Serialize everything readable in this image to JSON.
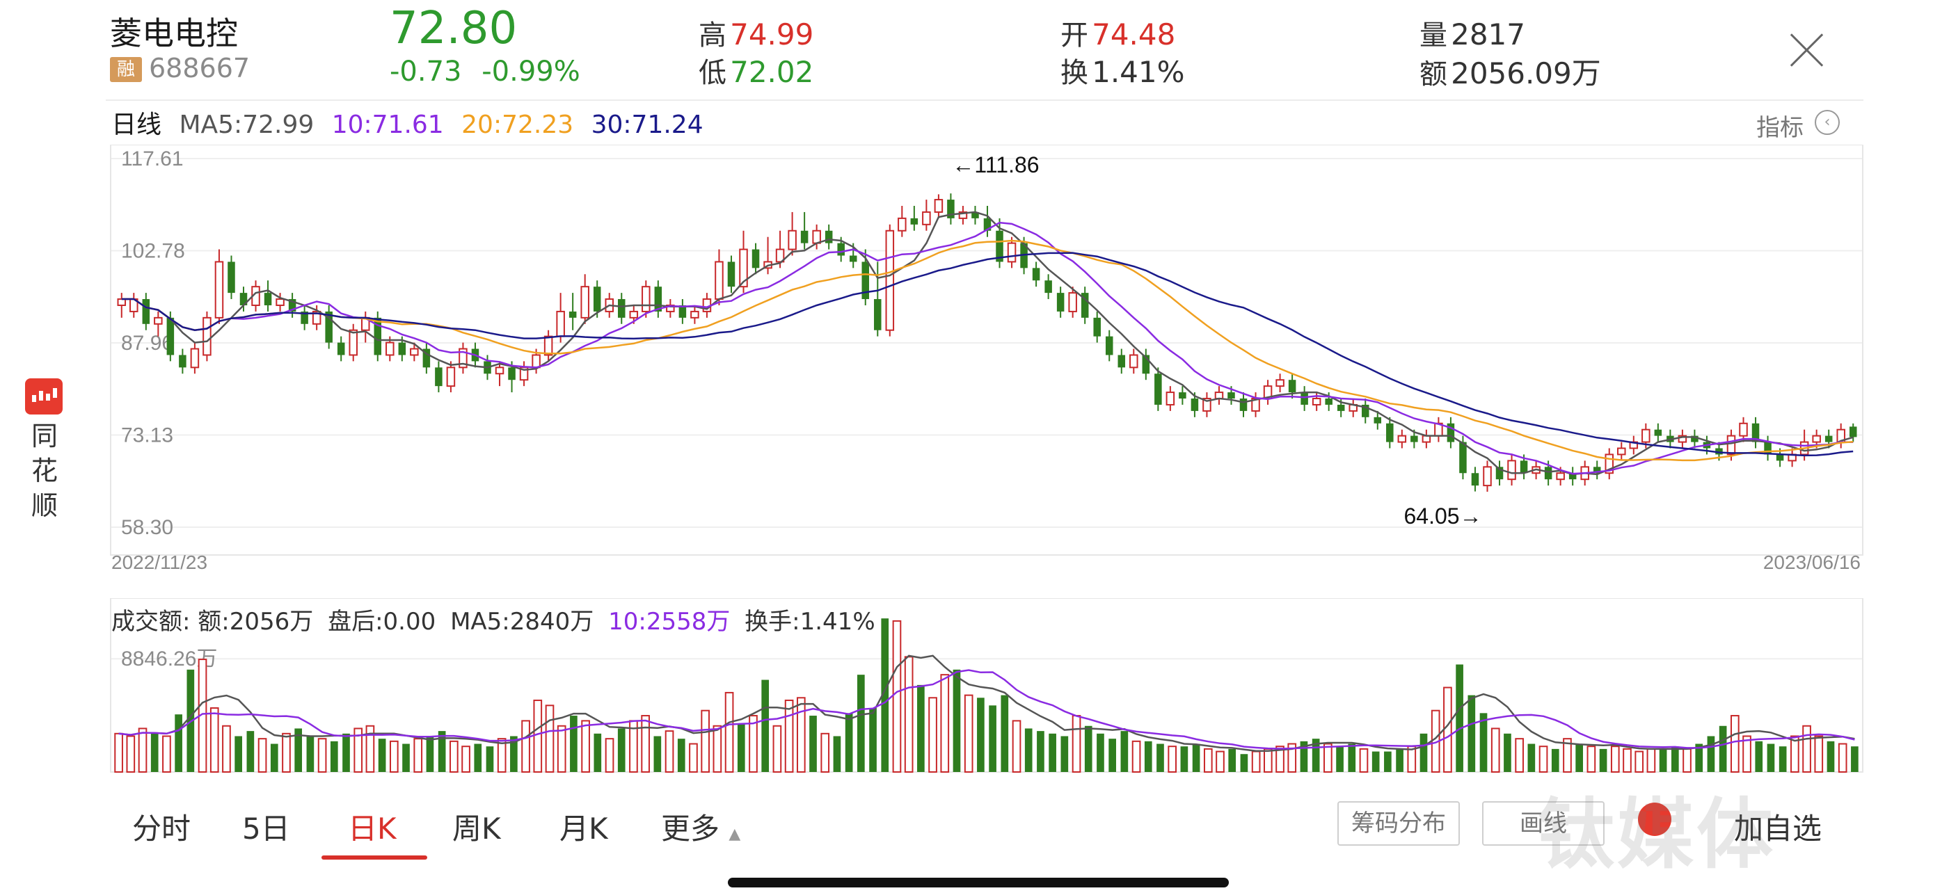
{
  "header": {
    "name": "菱电电控",
    "badge": "融",
    "code": "688667",
    "price": "72.80",
    "change": "-0.73",
    "change_pct": "-0.99%",
    "high_label": "高",
    "high": "74.99",
    "low_label": "低",
    "low": "72.02",
    "open_label": "开",
    "open": "74.48",
    "turnover_label": "换",
    "turnover": "1.41%",
    "volume_label": "量",
    "volume": "2817",
    "amount_label": "额",
    "amount": "2056.09万"
  },
  "logo": {
    "text": [
      "同",
      "花",
      "顺"
    ]
  },
  "ma": {
    "period": "日线",
    "ma5": "MA5:72.99",
    "ma10": "10:71.61",
    "ma20": "20:72.23",
    "ma30": "30:71.24",
    "indicator_label": "指标",
    "colors": {
      "ma5": "#555555",
      "ma10": "#8a2be2",
      "ma20": "#f0a020",
      "ma30": "#1a1a8a"
    }
  },
  "chart_data": [
    {
      "type": "candlestick",
      "y_ticks": [
        "117.61",
        "102.78",
        "87.96",
        "73.13",
        "58.30"
      ],
      "ylim": [
        58.3,
        117.61
      ],
      "x_start": "2022/11/23",
      "x_end": "2023/06/16",
      "max_annotation": "←111.86",
      "min_annotation": "64.05→",
      "candles": [
        [
          94,
          95,
          92,
          96
        ],
        [
          93,
          95,
          92,
          96
        ],
        [
          95,
          91,
          90,
          96
        ],
        [
          91,
          92,
          89,
          93
        ],
        [
          92,
          86,
          85,
          93
        ],
        [
          86,
          84,
          83,
          87
        ],
        [
          84,
          87,
          83,
          88
        ],
        [
          86,
          92,
          85,
          93
        ],
        [
          92,
          101,
          91,
          103
        ],
        [
          101,
          96,
          95,
          102
        ],
        [
          96,
          94,
          93,
          97
        ],
        [
          94,
          97,
          93,
          98
        ],
        [
          96,
          94,
          93,
          98
        ],
        [
          94,
          95,
          93,
          96
        ],
        [
          95,
          93,
          92,
          96
        ],
        [
          93,
          91,
          90,
          94
        ],
        [
          91,
          93,
          90,
          94
        ],
        [
          93,
          88,
          87,
          94
        ],
        [
          88,
          86,
          85,
          89
        ],
        [
          86,
          90,
          85,
          91
        ],
        [
          90,
          92,
          88,
          93
        ],
        [
          92,
          86,
          85,
          93
        ],
        [
          86,
          88,
          85,
          89
        ],
        [
          88,
          86,
          85,
          89
        ],
        [
          86,
          87,
          85,
          88
        ],
        [
          87,
          84,
          83,
          88
        ],
        [
          84,
          81,
          80,
          85
        ],
        [
          81,
          84,
          80,
          85
        ],
        [
          84,
          87,
          83,
          88
        ],
        [
          87,
          85,
          84,
          88
        ],
        [
          85,
          83,
          82,
          86
        ],
        [
          83,
          84,
          81,
          85
        ],
        [
          84,
          82,
          80,
          85
        ],
        [
          82,
          84,
          81,
          85
        ],
        [
          84,
          86,
          83,
          87
        ],
        [
          86,
          89,
          85,
          90
        ],
        [
          89,
          93,
          88,
          96
        ],
        [
          93,
          92,
          90,
          96
        ],
        [
          92,
          97,
          91,
          99
        ],
        [
          97,
          93,
          92,
          98
        ],
        [
          93,
          95,
          92,
          96
        ],
        [
          95,
          92,
          91,
          96
        ],
        [
          92,
          93,
          91,
          94
        ],
        [
          93,
          97,
          92,
          98
        ],
        [
          97,
          93,
          92,
          98
        ],
        [
          93,
          94,
          92,
          95
        ],
        [
          94,
          92,
          91,
          95
        ],
        [
          92,
          93,
          91,
          94
        ],
        [
          93,
          95,
          92,
          96
        ],
        [
          95,
          101,
          94,
          103
        ],
        [
          101,
          97,
          96,
          102
        ],
        [
          97,
          103,
          96,
          106
        ],
        [
          103,
          100,
          99,
          104
        ],
        [
          100,
          101,
          99,
          105
        ],
        [
          101,
          103,
          100,
          106
        ],
        [
          103,
          106,
          102,
          109
        ],
        [
          106,
          104,
          103,
          109
        ],
        [
          104,
          106,
          103,
          107
        ],
        [
          106,
          104,
          103,
          107
        ],
        [
          104,
          102,
          101,
          105
        ],
        [
          102,
          101,
          100,
          104
        ],
        [
          101,
          95,
          94,
          103
        ],
        [
          95,
          90,
          89,
          101
        ],
        [
          90,
          106,
          89,
          107
        ],
        [
          106,
          108,
          105,
          110
        ],
        [
          108,
          107,
          106,
          110
        ],
        [
          107,
          109,
          106,
          111
        ],
        [
          109,
          111,
          108,
          111.86
        ],
        [
          111,
          108,
          107,
          112
        ],
        [
          108,
          109,
          107,
          110
        ],
        [
          109,
          108,
          107,
          110
        ],
        [
          108,
          106,
          105,
          110
        ],
        [
          106,
          101,
          100,
          108
        ],
        [
          101,
          104,
          100,
          105
        ],
        [
          104,
          100,
          99,
          105
        ],
        [
          100,
          98,
          97,
          101
        ],
        [
          98,
          96,
          95,
          99
        ],
        [
          96,
          93,
          92,
          97
        ],
        [
          93,
          96,
          92,
          97
        ],
        [
          96,
          92,
          91,
          97
        ],
        [
          92,
          89,
          88,
          93
        ],
        [
          89,
          86,
          85,
          90
        ],
        [
          86,
          84,
          83,
          87
        ],
        [
          84,
          86,
          83,
          87
        ],
        [
          86,
          83,
          82,
          87
        ],
        [
          83,
          78,
          77,
          84
        ],
        [
          78,
          80,
          77,
          81
        ],
        [
          80,
          79,
          78,
          81
        ],
        [
          79,
          77,
          76,
          80
        ],
        [
          77,
          79,
          76,
          80
        ],
        [
          79,
          80,
          78,
          81
        ],
        [
          80,
          79,
          78,
          81
        ],
        [
          79,
          77,
          76,
          80
        ],
        [
          77,
          79,
          76,
          80
        ],
        [
          79,
          81,
          78,
          82
        ],
        [
          81,
          82,
          80,
          83
        ],
        [
          82,
          80,
          79,
          83
        ],
        [
          80,
          78,
          77,
          81
        ],
        [
          78,
          79,
          77,
          80
        ],
        [
          79,
          78,
          77,
          80
        ],
        [
          78,
          77,
          76,
          79
        ],
        [
          77,
          78,
          76,
          79
        ],
        [
          78,
          76,
          75,
          79
        ],
        [
          76,
          75,
          74,
          77
        ],
        [
          75,
          72,
          71,
          76
        ],
        [
          72,
          73,
          71,
          74
        ],
        [
          73,
          72,
          71,
          74
        ],
        [
          72,
          73,
          71,
          74
        ],
        [
          73,
          75,
          72,
          76
        ],
        [
          75,
          72,
          71,
          76
        ],
        [
          72,
          67,
          66,
          73
        ],
        [
          67,
          65,
          64.05,
          68
        ],
        [
          65,
          68,
          64,
          69
        ],
        [
          68,
          66,
          65,
          69
        ],
        [
          66,
          69,
          65,
          70
        ],
        [
          69,
          67,
          66,
          70
        ],
        [
          67,
          68,
          66,
          69
        ],
        [
          68,
          66,
          65,
          69
        ],
        [
          66,
          67,
          65,
          68
        ],
        [
          67,
          66,
          65,
          68
        ],
        [
          66,
          68,
          65,
          69
        ],
        [
          68,
          67,
          66,
          69
        ],
        [
          67,
          70,
          66,
          71
        ],
        [
          70,
          71,
          69,
          72
        ],
        [
          71,
          72,
          70,
          73
        ],
        [
          72,
          74,
          71,
          75
        ],
        [
          74,
          73,
          72,
          75
        ],
        [
          73,
          72,
          71,
          74
        ],
        [
          72,
          73,
          71,
          74
        ],
        [
          73,
          72,
          71,
          74
        ],
        [
          72,
          71,
          70,
          73
        ],
        [
          71,
          70,
          69,
          72
        ],
        [
          70,
          73,
          69,
          74
        ],
        [
          73,
          75,
          72,
          76
        ],
        [
          75,
          72,
          71,
          76
        ],
        [
          72,
          70,
          69,
          73
        ],
        [
          70,
          69,
          68,
          71
        ],
        [
          69,
          70,
          68,
          71
        ],
        [
          70,
          72,
          69,
          74
        ],
        [
          72,
          73,
          71,
          74
        ],
        [
          73,
          72,
          71,
          74
        ],
        [
          72,
          74,
          71,
          75
        ],
        [
          74.48,
          72.8,
          72.02,
          74.99
        ]
      ]
    },
    {
      "type": "bar",
      "label": "成交额:",
      "amount": "额:2056万",
      "after_hours": "盘后:0.00",
      "ma5": "MA5:2840万",
      "ma10": "10:2558万",
      "turnover": "换手:1.41%",
      "y_tick": "8846.26万",
      "values": [
        30,
        28,
        34,
        30,
        28,
        45,
        80,
        88,
        50,
        36,
        28,
        32,
        26,
        22,
        30,
        34,
        28,
        26,
        24,
        30,
        34,
        36,
        26,
        24,
        22,
        26,
        28,
        32,
        24,
        20,
        22,
        20,
        26,
        28,
        40,
        56,
        52,
        36,
        44,
        40,
        30,
        26,
        34,
        40,
        44,
        28,
        32,
        26,
        22,
        48,
        36,
        62,
        38,
        44,
        72,
        36,
        56,
        58,
        44,
        30,
        28,
        46,
        76,
        50,
        120,
        118,
        90,
        68,
        58,
        76,
        80,
        60,
        58,
        52,
        60,
        40,
        34,
        32,
        30,
        28,
        44,
        36,
        30,
        26,
        32,
        24,
        24,
        22,
        20,
        20,
        22,
        18,
        16,
        18,
        14,
        16,
        18,
        20,
        22,
        24,
        26,
        22,
        20,
        22,
        18,
        16,
        16,
        18,
        20,
        30,
        48,
        66,
        84,
        60,
        46,
        34,
        30,
        26,
        22,
        20,
        18,
        26,
        22,
        20,
        18,
        20,
        18,
        16,
        18,
        18,
        20,
        18,
        22,
        28,
        36,
        44,
        28,
        24,
        22,
        20,
        28,
        36,
        28,
        24,
        22,
        20
      ]
    }
  ],
  "nav": {
    "tabs": [
      "分时",
      "5日",
      "日K",
      "周K",
      "月K",
      "更多"
    ],
    "chip_button": "筹码分布",
    "draw_button": "画线",
    "add_button": "加自选"
  },
  "watermark": "钛媒体"
}
